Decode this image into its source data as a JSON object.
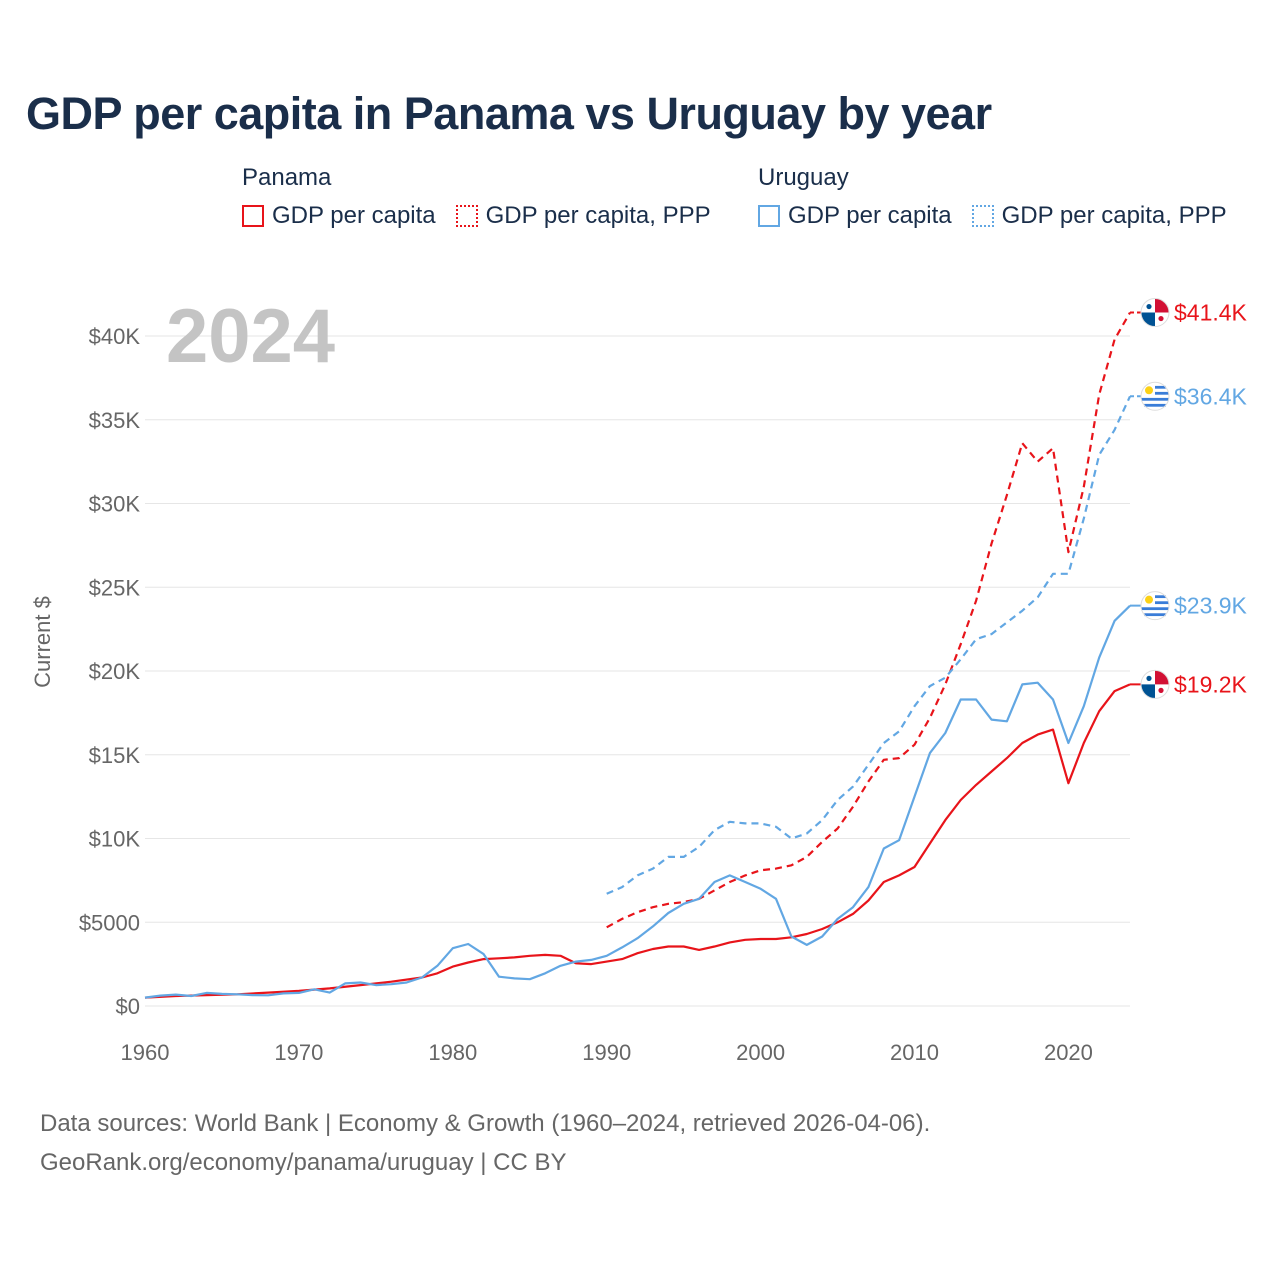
{
  "colors": {
    "panama": "#e8141a",
    "uruguay": "#62a7e3",
    "title": "#1a2e4a",
    "grid": "#e6e6e6",
    "axis_text": "#666666"
  },
  "chart_data": {
    "type": "line",
    "title": "GDP per capita in Panama vs Uruguay by year",
    "ylabel": "Current $",
    "xlabel": "",
    "watermark_year": "2024",
    "x_ticks": [
      1960,
      1970,
      1980,
      1990,
      2000,
      2010,
      2020
    ],
    "y_ticks": [
      0,
      5000,
      10000,
      15000,
      20000,
      25000,
      30000,
      35000,
      40000
    ],
    "y_tick_labels": [
      "$0",
      "$5000",
      "$10K",
      "$15K",
      "$20K",
      "$25K",
      "$30K",
      "$35K",
      "$40K"
    ],
    "xlim": [
      1960,
      2024
    ],
    "ylim": [
      0,
      42000
    ],
    "legend_groups": [
      {
        "name": "Panama",
        "color": "#e8141a",
        "entries": [
          {
            "label": "GDP per capita",
            "style": "solid"
          },
          {
            "label": "GDP per capita, PPP",
            "style": "dotted"
          }
        ]
      },
      {
        "name": "Uruguay",
        "color": "#62a7e3",
        "entries": [
          {
            "label": "GDP per capita",
            "style": "solid"
          },
          {
            "label": "GDP per capita, PPP",
            "style": "dotted"
          }
        ]
      }
    ],
    "series": [
      {
        "name": "Panama PPP",
        "country": "panama",
        "dashed": true,
        "end_label": "$41.4K",
        "x": [
          1990,
          1991,
          1992,
          1993,
          1994,
          1995,
          1996,
          1997,
          1998,
          1999,
          2000,
          2001,
          2002,
          2003,
          2004,
          2005,
          2006,
          2007,
          2008,
          2009,
          2010,
          2011,
          2012,
          2013,
          2014,
          2015,
          2016,
          2017,
          2018,
          2019,
          2020,
          2021,
          2022,
          2023,
          2024
        ],
        "values": [
          4700,
          5200,
          5600,
          5900,
          6100,
          6200,
          6400,
          6900,
          7400,
          7800,
          8100,
          8200,
          8400,
          8900,
          9800,
          10600,
          11900,
          13400,
          14700,
          14800,
          15600,
          17200,
          19200,
          21600,
          24200,
          27600,
          30500,
          33600,
          32500,
          33300,
          27100,
          31000,
          36500,
          39800,
          41400
        ]
      },
      {
        "name": "Uruguay PPP",
        "country": "uruguay",
        "dashed": true,
        "end_label": "$36.4K",
        "x": [
          1990,
          1991,
          1992,
          1993,
          1994,
          1995,
          1996,
          1997,
          1998,
          1999,
          2000,
          2001,
          2002,
          2003,
          2004,
          2005,
          2006,
          2007,
          2008,
          2009,
          2010,
          2011,
          2012,
          2013,
          2014,
          2015,
          2016,
          2017,
          2018,
          2019,
          2020,
          2021,
          2022,
          2023,
          2024
        ],
        "values": [
          6700,
          7100,
          7800,
          8200,
          8900,
          8900,
          9500,
          10500,
          11000,
          10900,
          10900,
          10700,
          10000,
          10300,
          11100,
          12300,
          13100,
          14400,
          15700,
          16400,
          17900,
          19100,
          19600,
          20700,
          21900,
          22200,
          22900,
          23600,
          24400,
          25800,
          25800,
          29100,
          32900,
          34400,
          36400
        ]
      },
      {
        "name": "Panama GDP per capita",
        "country": "panama",
        "dashed": false,
        "end_label": "$19.2K",
        "x": [
          1960,
          1962,
          1964,
          1966,
          1968,
          1970,
          1972,
          1974,
          1976,
          1978,
          1979,
          1980,
          1981,
          1982,
          1983,
          1984,
          1985,
          1986,
          1987,
          1988,
          1989,
          1990,
          1991,
          1992,
          1993,
          1994,
          1995,
          1996,
          1997,
          1998,
          1999,
          2000,
          2001,
          2002,
          2003,
          2004,
          2005,
          2006,
          2007,
          2008,
          2009,
          2010,
          2011,
          2012,
          2013,
          2014,
          2015,
          2016,
          2017,
          2018,
          2019,
          2020,
          2021,
          2022,
          2023,
          2024
        ],
        "values": [
          500,
          600,
          650,
          700,
          800,
          900,
          1050,
          1250,
          1450,
          1700,
          1950,
          2350,
          2600,
          2800,
          2850,
          2900,
          3000,
          3050,
          3000,
          2550,
          2500,
          2650,
          2800,
          3150,
          3400,
          3550,
          3550,
          3350,
          3550,
          3800,
          3950,
          4000,
          4000,
          4100,
          4300,
          4600,
          5000,
          5500,
          6300,
          7400,
          7800,
          8300,
          9700,
          11100,
          12300,
          13200,
          14000,
          14800,
          15700,
          16200,
          16500,
          13300,
          15700,
          17600,
          18800,
          19200
        ]
      },
      {
        "name": "Uruguay GDP per capita",
        "country": "uruguay",
        "dashed": false,
        "end_label": "$23.9K",
        "x": [
          1960,
          1961,
          1962,
          1963,
          1964,
          1965,
          1966,
          1967,
          1968,
          1969,
          1970,
          1971,
          1972,
          1973,
          1974,
          1975,
          1976,
          1977,
          1978,
          1979,
          1980,
          1981,
          1982,
          1983,
          1984,
          1985,
          1986,
          1987,
          1988,
          1989,
          1990,
          1991,
          1992,
          1993,
          1994,
          1995,
          1996,
          1997,
          1998,
          1999,
          2000,
          2001,
          2002,
          2003,
          2004,
          2005,
          2006,
          2007,
          2008,
          2009,
          2010,
          2011,
          2012,
          2013,
          2014,
          2015,
          2016,
          2017,
          2018,
          2019,
          2020,
          2021,
          2022,
          2023,
          2024
        ],
        "values": [
          500,
          620,
          680,
          600,
          780,
          720,
          700,
          650,
          640,
          750,
          780,
          1000,
          800,
          1350,
          1400,
          1250,
          1300,
          1400,
          1700,
          2400,
          3450,
          3700,
          3100,
          1750,
          1650,
          1600,
          1950,
          2400,
          2650,
          2750,
          3000,
          3500,
          4050,
          4750,
          5550,
          6100,
          6400,
          7400,
          7800,
          7400,
          7000,
          6400,
          4150,
          3650,
          4150,
          5200,
          5900,
          7100,
          9400,
          9900,
          12500,
          15100,
          16300,
          18300,
          18300,
          17100,
          17000,
          19200,
          19300,
          18300,
          15700,
          17900,
          20800,
          23000,
          23900
        ]
      }
    ]
  },
  "footer": {
    "line1": "Data sources: World Bank | Economy & Growth (1960–2024, retrieved 2026-04-06).",
    "line2": "GeoRank.org/economy/panama/uruguay | CC BY"
  }
}
